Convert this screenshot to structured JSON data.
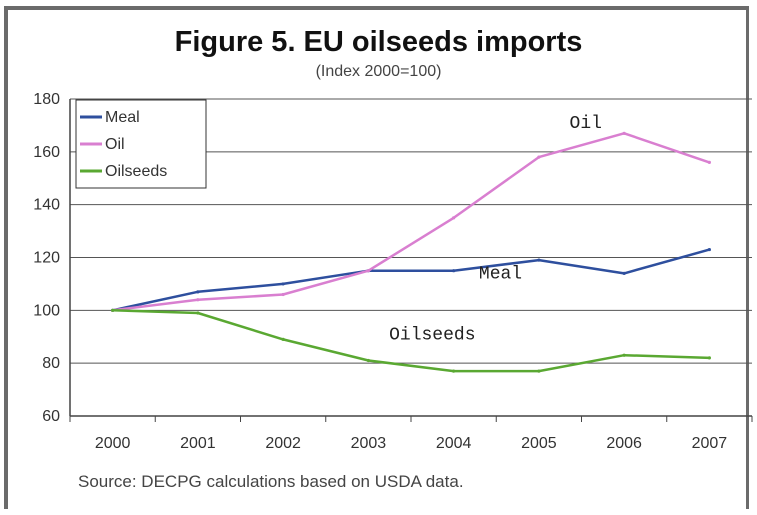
{
  "chart_data": {
    "type": "line",
    "title": "Figure 5. EU oilseeds imports",
    "subtitle": "(Index 2000=100)",
    "source": "Source: DECPG calculations based on USDA data.",
    "x": [
      "2000",
      "2001",
      "2002",
      "2003",
      "2004",
      "2005",
      "2006",
      "2007"
    ],
    "ylim": [
      60,
      180
    ],
    "yticks": [
      60,
      80,
      100,
      120,
      140,
      160,
      180
    ],
    "grid": true,
    "legend_position": "top-left",
    "series": [
      {
        "name": "Meal",
        "color": "#2e4f9e",
        "values": [
          100,
          107,
          110,
          115,
          115,
          119,
          114,
          123
        ]
      },
      {
        "name": "Oil",
        "color": "#d97fd0",
        "values": [
          100,
          104,
          106,
          115,
          135,
          158,
          167,
          156
        ]
      },
      {
        "name": "Oilseeds",
        "color": "#5aa832",
        "values": [
          100,
          99,
          89,
          81,
          77,
          77,
          83,
          82
        ]
      }
    ],
    "annotations": [
      {
        "text": "Oil",
        "series": "Oil"
      },
      {
        "text": "Meal",
        "series": "Meal"
      },
      {
        "text": "Oilseeds",
        "series": "Oilseeds"
      }
    ]
  }
}
